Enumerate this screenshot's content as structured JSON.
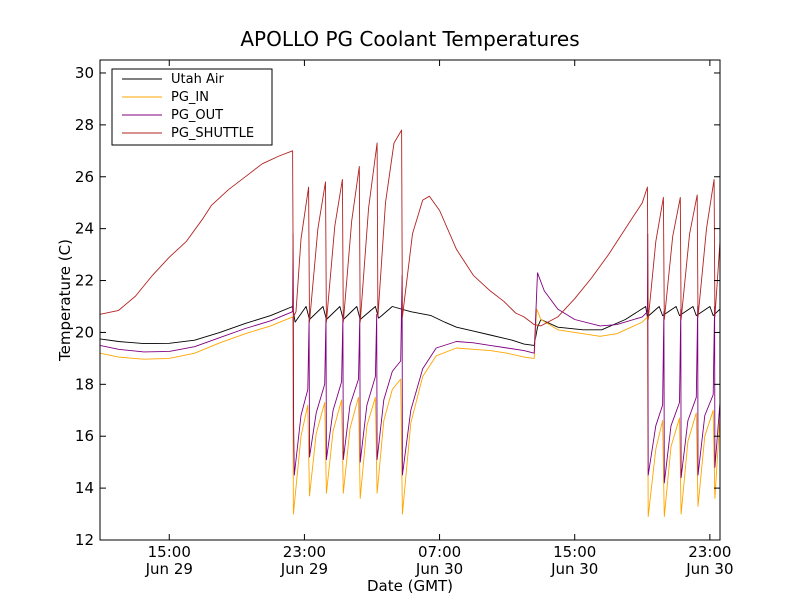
{
  "chart_data": {
    "type": "line",
    "title": "APOLLO PG Coolant Temperatures",
    "xlabel": "Date (GMT)",
    "ylabel": "Temperature (C)",
    "x_unit": "hours since Jun 29 00:00 GMT",
    "xlim": [
      10.9,
      47.6
    ],
    "ylim": [
      12,
      30.5
    ],
    "yticks": [
      12,
      14,
      16,
      18,
      20,
      22,
      24,
      26,
      28,
      30
    ],
    "xticks": [
      {
        "x": 15,
        "time": "15:00",
        "date": "Jun 29"
      },
      {
        "x": 23,
        "time": "23:00",
        "date": "Jun 29"
      },
      {
        "x": 31,
        "time": "07:00",
        "date": "Jun 30"
      },
      {
        "x": 39,
        "time": "15:00",
        "date": "Jun 30"
      },
      {
        "x": 47,
        "time": "23:00",
        "date": "Jun 30"
      }
    ],
    "legend_position": "top-left",
    "series": [
      {
        "name": "Utah Air",
        "color": "#000000",
        "points": [
          [
            10.9,
            19.75
          ],
          [
            12,
            19.65
          ],
          [
            13.5,
            19.57
          ],
          [
            15,
            19.58
          ],
          [
            16.5,
            19.7
          ],
          [
            18,
            20
          ],
          [
            19.5,
            20.35
          ],
          [
            21,
            20.65
          ],
          [
            22.3,
            21
          ],
          [
            22.45,
            20.4
          ],
          [
            23.1,
            21
          ],
          [
            23.3,
            20.5
          ],
          [
            24.1,
            21
          ],
          [
            24.3,
            20.5
          ],
          [
            25.1,
            21
          ],
          [
            25.3,
            20.5
          ],
          [
            26.1,
            21
          ],
          [
            26.3,
            20.5
          ],
          [
            27.2,
            21
          ],
          [
            27.4,
            20.55
          ],
          [
            28.2,
            21
          ],
          [
            29.3,
            20.8
          ],
          [
            30.5,
            20.65
          ],
          [
            31.3,
            20.4
          ],
          [
            32,
            20.2
          ],
          [
            33,
            20.05
          ],
          [
            34,
            19.9
          ],
          [
            35.3,
            19.7
          ],
          [
            36,
            19.55
          ],
          [
            36.6,
            19.5
          ],
          [
            36.8,
            20.2
          ],
          [
            37,
            20.5
          ],
          [
            38,
            20.2
          ],
          [
            39.5,
            20.1
          ],
          [
            40.6,
            20.1
          ],
          [
            42,
            20.5
          ],
          [
            43.2,
            21
          ],
          [
            43.3,
            20.6
          ],
          [
            44,
            21
          ],
          [
            44.2,
            20.65
          ],
          [
            45,
            21
          ],
          [
            45.2,
            20.65
          ],
          [
            46,
            21
          ],
          [
            46.2,
            20.65
          ],
          [
            47,
            21
          ],
          [
            47.2,
            20.65
          ],
          [
            47.6,
            20.9
          ]
        ]
      },
      {
        "name": "PG_IN",
        "color": "#ffa500",
        "points": [
          [
            10.9,
            19.2
          ],
          [
            12,
            19.05
          ],
          [
            13.5,
            18.97
          ],
          [
            15,
            19
          ],
          [
            16.5,
            19.2
          ],
          [
            18,
            19.6
          ],
          [
            19.5,
            19.95
          ],
          [
            21,
            20.25
          ],
          [
            22.3,
            20.6
          ],
          [
            22.35,
            13
          ],
          [
            22.8,
            16
          ],
          [
            23.2,
            17.2
          ],
          [
            23.3,
            13.7
          ],
          [
            23.7,
            16.1
          ],
          [
            24.2,
            17.3
          ],
          [
            24.3,
            13.8
          ],
          [
            24.7,
            16.2
          ],
          [
            25.2,
            17.4
          ],
          [
            25.3,
            13.8
          ],
          [
            25.7,
            16.3
          ],
          [
            26.2,
            17.5
          ],
          [
            26.3,
            13.6
          ],
          [
            26.7,
            16.4
          ],
          [
            27.2,
            17.5
          ],
          [
            27.3,
            13.8
          ],
          [
            27.7,
            16.6
          ],
          [
            28.2,
            17.8
          ],
          [
            28.7,
            18.2
          ],
          [
            28.8,
            13
          ],
          [
            29.3,
            16.5
          ],
          [
            30,
            18.3
          ],
          [
            30.8,
            19.1
          ],
          [
            32,
            19.4
          ],
          [
            33,
            19.35
          ],
          [
            34,
            19.3
          ],
          [
            35,
            19.2
          ],
          [
            36,
            19.05
          ],
          [
            36.6,
            19
          ],
          [
            36.75,
            20.9
          ],
          [
            37,
            20.5
          ],
          [
            38,
            20.1
          ],
          [
            39,
            20
          ],
          [
            40.5,
            19.85
          ],
          [
            41.5,
            19.95
          ],
          [
            43,
            20.4
          ],
          [
            43.3,
            20.6
          ],
          [
            43.35,
            12.9
          ],
          [
            43.8,
            15.5
          ],
          [
            44.2,
            16.6
          ],
          [
            44.3,
            12.9
          ],
          [
            44.7,
            15.6
          ],
          [
            45.2,
            16.7
          ],
          [
            45.3,
            13
          ],
          [
            45.7,
            15.8
          ],
          [
            46.2,
            16.9
          ],
          [
            46.3,
            13.3
          ],
          [
            46.7,
            16
          ],
          [
            47.2,
            17
          ],
          [
            47.3,
            13.6
          ],
          [
            47.6,
            16.8
          ]
        ]
      },
      {
        "name": "PG_OUT",
        "color": "#800080",
        "points": [
          [
            10.9,
            19.5
          ],
          [
            12,
            19.35
          ],
          [
            13.5,
            19.25
          ],
          [
            15,
            19.27
          ],
          [
            16.5,
            19.45
          ],
          [
            18,
            19.8
          ],
          [
            19.5,
            20.15
          ],
          [
            21,
            20.45
          ],
          [
            22.3,
            20.8
          ],
          [
            22.33,
            23.8
          ],
          [
            22.36,
            16.5
          ],
          [
            22.4,
            14.5
          ],
          [
            22.8,
            16.8
          ],
          [
            23.2,
            17.8
          ],
          [
            23.28,
            20.5
          ],
          [
            23.3,
            15.2
          ],
          [
            23.7,
            16.9
          ],
          [
            24.2,
            18
          ],
          [
            24.28,
            20.6
          ],
          [
            24.3,
            15.1
          ],
          [
            24.7,
            17
          ],
          [
            25.2,
            18.1
          ],
          [
            25.28,
            20.6
          ],
          [
            25.3,
            15.1
          ],
          [
            25.7,
            17.2
          ],
          [
            26.2,
            18.2
          ],
          [
            26.28,
            20.6
          ],
          [
            26.3,
            15
          ],
          [
            26.7,
            17.2
          ],
          [
            27.2,
            18.3
          ],
          [
            27.28,
            20.7
          ],
          [
            27.3,
            15.1
          ],
          [
            27.7,
            17.4
          ],
          [
            28.2,
            18.5
          ],
          [
            28.7,
            18.9
          ],
          [
            28.78,
            22.2
          ],
          [
            28.8,
            14.5
          ],
          [
            29.3,
            17
          ],
          [
            30,
            18.6
          ],
          [
            30.8,
            19.4
          ],
          [
            32,
            19.65
          ],
          [
            33,
            19.6
          ],
          [
            34,
            19.5
          ],
          [
            35,
            19.4
          ],
          [
            36,
            19.3
          ],
          [
            36.6,
            19.2
          ],
          [
            36.8,
            22.3
          ],
          [
            37.2,
            21.6
          ],
          [
            38,
            20.9
          ],
          [
            39,
            20.5
          ],
          [
            40.5,
            20.25
          ],
          [
            41.5,
            20.3
          ],
          [
            43,
            20.6
          ],
          [
            43.3,
            20.8
          ],
          [
            43.32,
            23.8
          ],
          [
            43.35,
            14.5
          ],
          [
            43.8,
            16.4
          ],
          [
            44.2,
            17.2
          ],
          [
            44.28,
            20.8
          ],
          [
            44.3,
            14.2
          ],
          [
            44.7,
            16.4
          ],
          [
            45.2,
            17.3
          ],
          [
            45.28,
            20.9
          ],
          [
            45.3,
            14.4
          ],
          [
            45.7,
            16.6
          ],
          [
            46.2,
            17.5
          ],
          [
            46.28,
            21
          ],
          [
            46.3,
            14.5
          ],
          [
            46.7,
            16.8
          ],
          [
            47.2,
            17.6
          ],
          [
            47.28,
            21
          ],
          [
            47.3,
            14.8
          ],
          [
            47.6,
            17.3
          ]
        ]
      },
      {
        "name": "PG_SHUTTLE",
        "color": "#b22222",
        "points": [
          [
            10.9,
            20.7
          ],
          [
            12,
            20.85
          ],
          [
            13,
            21.4
          ],
          [
            14,
            22.2
          ],
          [
            15,
            22.9
          ],
          [
            16,
            23.5
          ],
          [
            17,
            24.4
          ],
          [
            17.5,
            24.9
          ],
          [
            18.5,
            25.5
          ],
          [
            19.5,
            26
          ],
          [
            20.5,
            26.5
          ],
          [
            21.5,
            26.8
          ],
          [
            22.3,
            27
          ],
          [
            22.35,
            20.6
          ],
          [
            22.5,
            20.8
          ],
          [
            22.8,
            23.6
          ],
          [
            23.25,
            25.6
          ],
          [
            23.3,
            20.4
          ],
          [
            23.8,
            24
          ],
          [
            24.25,
            25.8
          ],
          [
            24.3,
            20.4
          ],
          [
            24.8,
            24.1
          ],
          [
            25.25,
            25.9
          ],
          [
            25.3,
            20.4
          ],
          [
            25.8,
            24.3
          ],
          [
            26.25,
            26.4
          ],
          [
            26.3,
            20.4
          ],
          [
            26.8,
            24.8
          ],
          [
            27.3,
            27.3
          ],
          [
            27.35,
            20.6
          ],
          [
            27.8,
            25
          ],
          [
            28.3,
            27.3
          ],
          [
            28.75,
            27.8
          ],
          [
            28.8,
            20.6
          ],
          [
            29.4,
            23.8
          ],
          [
            30,
            25.1
          ],
          [
            30.4,
            25.25
          ],
          [
            31,
            24.7
          ],
          [
            32,
            23.2
          ],
          [
            33,
            22.2
          ],
          [
            34,
            21.6
          ],
          [
            34.8,
            21.2
          ],
          [
            35.5,
            20.75
          ],
          [
            36,
            20.6
          ],
          [
            36.6,
            20.3
          ],
          [
            37,
            20.25
          ],
          [
            38,
            20.6
          ],
          [
            39,
            21.3
          ],
          [
            40,
            22.1
          ],
          [
            41,
            23
          ],
          [
            42,
            24
          ],
          [
            43,
            25
          ],
          [
            43.3,
            25.6
          ],
          [
            43.35,
            20.5
          ],
          [
            43.8,
            23.5
          ],
          [
            44.25,
            25.2
          ],
          [
            44.3,
            20.5
          ],
          [
            44.8,
            23.7
          ],
          [
            45.25,
            25.2
          ],
          [
            45.3,
            20.5
          ],
          [
            45.8,
            23.8
          ],
          [
            46.25,
            25.3
          ],
          [
            46.3,
            20.6
          ],
          [
            46.8,
            24
          ],
          [
            47.25,
            25.9
          ],
          [
            47.3,
            20.6
          ],
          [
            47.6,
            23.5
          ]
        ]
      }
    ]
  }
}
